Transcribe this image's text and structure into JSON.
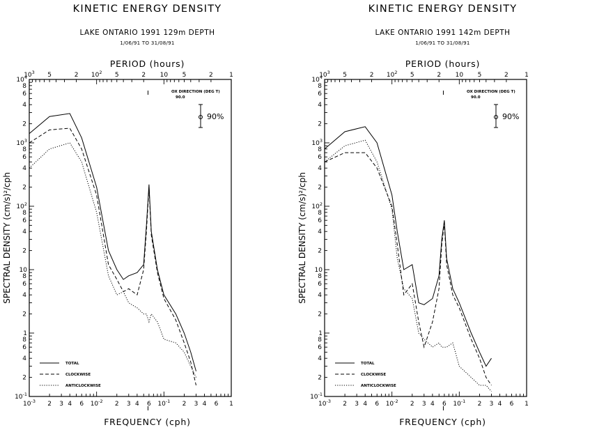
{
  "panels": [
    {
      "title": "KINETIC ENERGY DENSITY",
      "subtitle": "LAKE ONTARIO 1991     129m  DEPTH",
      "date_range": "1/06/91   TO   31/08/91",
      "top_axis_label": "PERIOD  (hours)",
      "x_axis_label": "FREQUENCY  (cph)",
      "y_axis_label": "SPECTRAL DENSITY  (cm/s)²/cph",
      "direction_label": "OX DIRECTION  (DEG T)",
      "direction_value": "90.0",
      "confidence_label": "90%",
      "legend": {
        "total": "TOTAL",
        "clockwise": "CLOCKWISE",
        "anticlockwise": "ANTICLOCKWISE"
      }
    },
    {
      "title": "KINETIC ENERGY DENSITY",
      "subtitle": "LAKE ONTARIO 1991     142m  DEPTH",
      "date_range": "1/06/91   TO   31/08/91",
      "top_axis_label": "PERIOD  (hours)",
      "x_axis_label": "FREQUENCY  (cph)",
      "y_axis_label": "SPECTRAL DENSITY  (cm/s)²/cph",
      "direction_label": "OX DIRECTION  (DEG T)",
      "direction_value": "90.0",
      "confidence_label": "90%",
      "legend": {
        "total": "TOTAL",
        "clockwise": "CLOCKWISE",
        "anticlockwise": "ANTICLOCKWISE"
      }
    }
  ],
  "chart_data": [
    {
      "type": "line",
      "title": "KINETIC ENERGY DENSITY",
      "xlabel": "FREQUENCY  (cph)",
      "ylabel": "SPECTRAL DENSITY  (cm/s)²/cph",
      "x_scale": "log",
      "y_scale": "log",
      "xlim": [
        0.001,
        1
      ],
      "ylim": [
        0.1,
        10000
      ],
      "legend_position": "bottom-left",
      "series": [
        {
          "name": "TOTAL",
          "style": "solid",
          "x": [
            0.001,
            0.002,
            0.004,
            0.006,
            0.01,
            0.015,
            0.02,
            0.025,
            0.03,
            0.04,
            0.05,
            0.055,
            0.06,
            0.065,
            0.08,
            0.1,
            0.15,
            0.2,
            0.25,
            0.3
          ],
          "y": [
            1400,
            2600,
            2900,
            1200,
            200,
            20,
            10,
            7,
            8,
            9,
            12,
            50,
            220,
            40,
            10,
            4,
            2,
            1,
            0.5,
            0.25
          ]
        },
        {
          "name": "CLOCKWISE",
          "style": "dashed",
          "x": [
            0.001,
            0.002,
            0.004,
            0.006,
            0.01,
            0.015,
            0.02,
            0.025,
            0.03,
            0.04,
            0.05,
            0.055,
            0.06,
            0.065,
            0.08,
            0.1,
            0.15,
            0.2,
            0.25,
            0.3
          ],
          "y": [
            1000,
            1600,
            1700,
            800,
            150,
            12,
            7,
            4.5,
            5,
            4,
            10,
            40,
            200,
            35,
            9,
            3.5,
            1.6,
            0.7,
            0.35,
            0.15
          ]
        },
        {
          "name": "ANTICLOCKWISE",
          "style": "dotted",
          "x": [
            0.001,
            0.002,
            0.004,
            0.006,
            0.01,
            0.015,
            0.02,
            0.025,
            0.03,
            0.04,
            0.05,
            0.055,
            0.06,
            0.065,
            0.08,
            0.1,
            0.15,
            0.2,
            0.25,
            0.3
          ],
          "y": [
            400,
            800,
            1000,
            500,
            80,
            8,
            4,
            4.5,
            3,
            2.5,
            2,
            2,
            1.5,
            2,
            1.5,
            0.8,
            0.7,
            0.5,
            0.3,
            0.2
          ]
        }
      ]
    },
    {
      "type": "line",
      "title": "KINETIC ENERGY DENSITY",
      "xlabel": "FREQUENCY  (cph)",
      "ylabel": "SPECTRAL DENSITY  (cm/s)²/cph",
      "x_scale": "log",
      "y_scale": "log",
      "xlim": [
        0.001,
        1
      ],
      "ylim": [
        0.1,
        10000
      ],
      "legend_position": "bottom-left",
      "series": [
        {
          "name": "TOTAL",
          "style": "solid",
          "x": [
            0.001,
            0.002,
            0.004,
            0.006,
            0.01,
            0.012,
            0.015,
            0.02,
            0.025,
            0.03,
            0.04,
            0.05,
            0.055,
            0.06,
            0.065,
            0.08,
            0.1,
            0.15,
            0.2,
            0.25,
            0.3
          ],
          "y": [
            800,
            1500,
            1800,
            1000,
            150,
            40,
            10,
            12,
            3,
            2.8,
            3.5,
            8,
            30,
            60,
            15,
            5,
            3,
            1,
            0.5,
            0.3,
            0.4
          ]
        },
        {
          "name": "CLOCKWISE",
          "style": "dashed",
          "x": [
            0.001,
            0.002,
            0.004,
            0.006,
            0.01,
            0.012,
            0.015,
            0.02,
            0.025,
            0.03,
            0.04,
            0.05,
            0.055,
            0.06,
            0.065,
            0.08,
            0.1,
            0.15,
            0.2,
            0.25,
            0.3
          ],
          "y": [
            500,
            700,
            700,
            400,
            100,
            25,
            4,
            6,
            1.5,
            0.6,
            1.5,
            5,
            25,
            55,
            12,
            4,
            2.5,
            0.8,
            0.4,
            0.2,
            0.15
          ]
        },
        {
          "name": "ANTICLOCKWISE",
          "style": "dotted",
          "x": [
            0.001,
            0.002,
            0.004,
            0.006,
            0.01,
            0.012,
            0.015,
            0.02,
            0.025,
            0.03,
            0.04,
            0.05,
            0.055,
            0.06,
            0.065,
            0.08,
            0.1,
            0.15,
            0.2,
            0.25,
            0.3
          ],
          "y": [
            500,
            900,
            1100,
            500,
            90,
            15,
            5,
            3.5,
            1,
            0.8,
            0.6,
            0.7,
            0.6,
            0.6,
            0.6,
            0.7,
            0.3,
            0.2,
            0.15,
            0.15,
            0.12
          ]
        }
      ]
    }
  ]
}
